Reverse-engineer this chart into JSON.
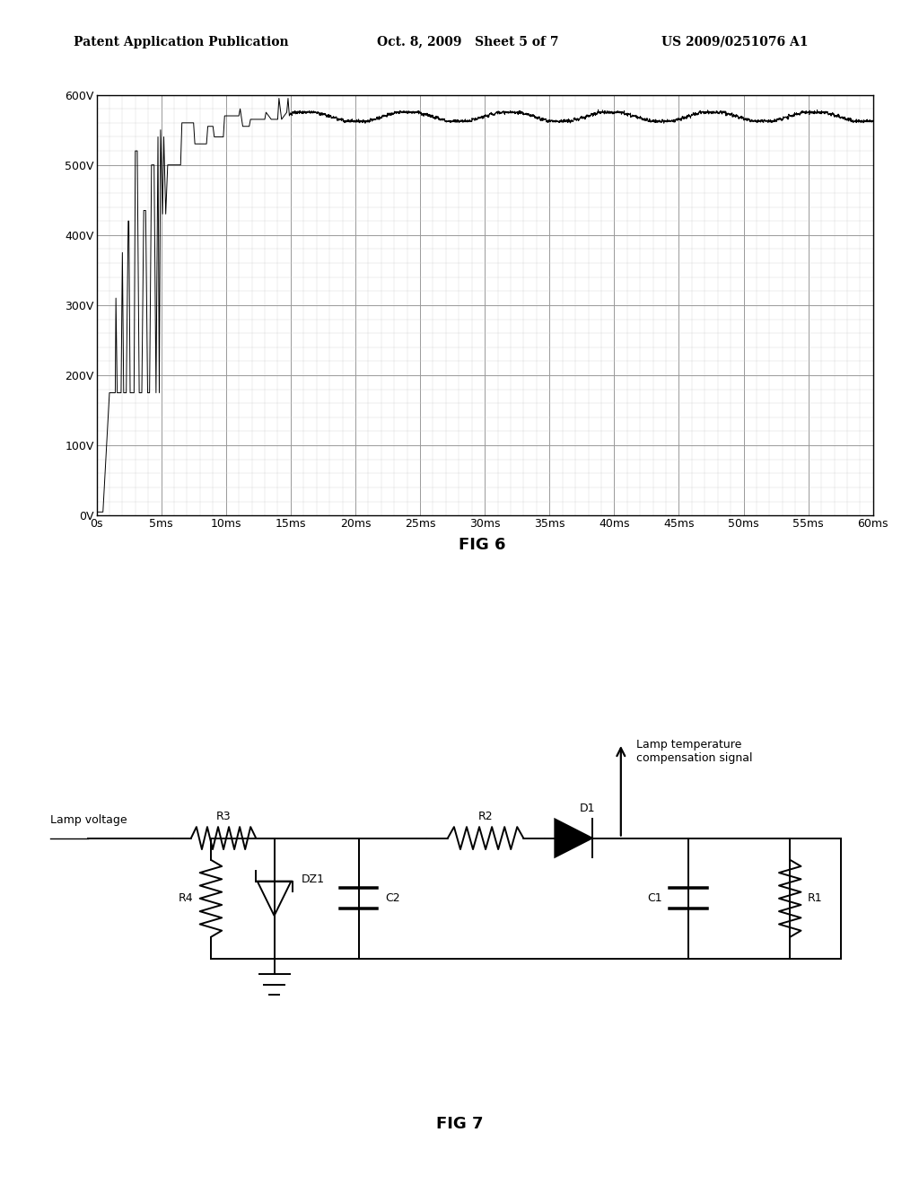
{
  "page_title_left": "Patent Application Publication",
  "page_title_center": "Oct. 8, 2009   Sheet 5 of 7",
  "page_title_right": "US 2009/0251076 A1",
  "fig6_title": "FIG 6",
  "fig7_title": "FIG 7",
  "fig6_ylabel_ticks": [
    "0V",
    "100V",
    "200V",
    "300V",
    "400V",
    "500V",
    "600V"
  ],
  "fig6_xlabel_ticks": [
    "0s",
    "5ms",
    "10ms",
    "15ms",
    "20ms",
    "25ms",
    "30ms",
    "35ms",
    "40ms",
    "45ms",
    "50ms",
    "55ms",
    "60ms"
  ],
  "fig6_ylim": [
    0,
    600
  ],
  "fig6_xlim": [
    0,
    60
  ],
  "bg_color": "#ffffff",
  "grid_major_color": "#999999",
  "grid_minor_color": "#cccccc",
  "line_color": "#000000",
  "lamp_voltage_label": "Lamp voltage",
  "lamp_temp_label_line1": "Lamp temperature",
  "lamp_temp_label_line2": "compensation signal",
  "component_labels": {
    "R1": "R1",
    "R2": "R2",
    "R3": "R3",
    "R4": "R4",
    "C1": "C1",
    "C2": "C2",
    "DZ1": "DZ1",
    "D1": "D1"
  }
}
